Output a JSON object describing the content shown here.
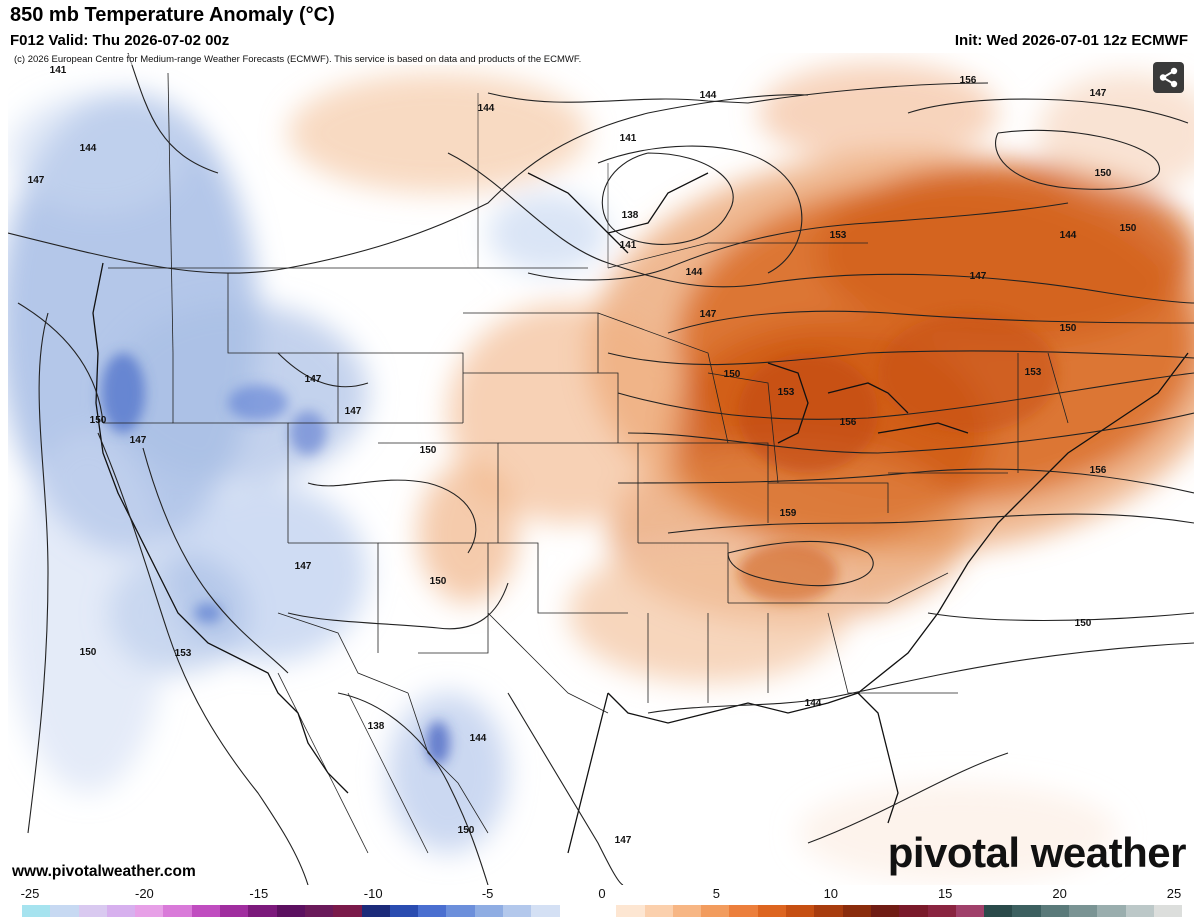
{
  "header": {
    "title": "850 mb Temperature Anomaly (°C)",
    "valid": "F012 Valid: Thu 2026-07-02 00z",
    "init": "Init: Wed 2026-07-01 12z ECMWF"
  },
  "map": {
    "copyright": "(c) 2026 European Centre for Medium-range Weather Forecasts (ECMWF). This service is based on data and products of the ECMWF.",
    "share_icon": "share-icon",
    "website": "www.pivotalweather.com",
    "logo": "pivotal weather",
    "contour_labels": [
      "141",
      "144",
      "147",
      "150",
      "153",
      "156",
      "159",
      "138"
    ],
    "label_values": [
      "141",
      "144",
      "147",
      "144",
      "141",
      "144",
      "138",
      "141",
      "144",
      "147",
      "150",
      "153",
      "156",
      "159",
      "156",
      "153",
      "150",
      "147",
      "144",
      "147",
      "150",
      "153",
      "156",
      "150",
      "147",
      "147",
      "147",
      "147",
      "150",
      "150",
      "150",
      "150",
      "153",
      "138",
      "144",
      "150",
      "147",
      "144",
      "150"
    ]
  },
  "colorbar": {
    "ticks": [
      "-25",
      "-20",
      "-15",
      "-10",
      "-5",
      "0",
      "5",
      "10",
      "15",
      "20",
      "25"
    ],
    "colors": [
      "#a6e3ef",
      "#c7d9f2",
      "#d9c9f0",
      "#d7b0ee",
      "#e7a0e7",
      "#d97ad9",
      "#c04dc0",
      "#a02e9f",
      "#7c1a7c",
      "#5c1060",
      "#6a1a5a",
      "#7a1a4a",
      "#1c2b7a",
      "#2a4cb0",
      "#4a6fd0",
      "#6c8fdb",
      "#8fadE3",
      "#b3c8ec",
      "#d4e0f4",
      "#ffffff",
      "#ffffff",
      "#fde6d2",
      "#fbd0ad",
      "#f7b684",
      "#f29c5e",
      "#ec7f3c",
      "#dd6520",
      "#c64f12",
      "#a83c0e",
      "#8a2c0c",
      "#701c14",
      "#7a1a2a",
      "#8a2440",
      "#a0406a",
      "#2a4a4a",
      "#3c6060",
      "#5a7a7a",
      "#7a9494",
      "#9aaeae",
      "#bcc8c8",
      "#dcdedc"
    ]
  }
}
